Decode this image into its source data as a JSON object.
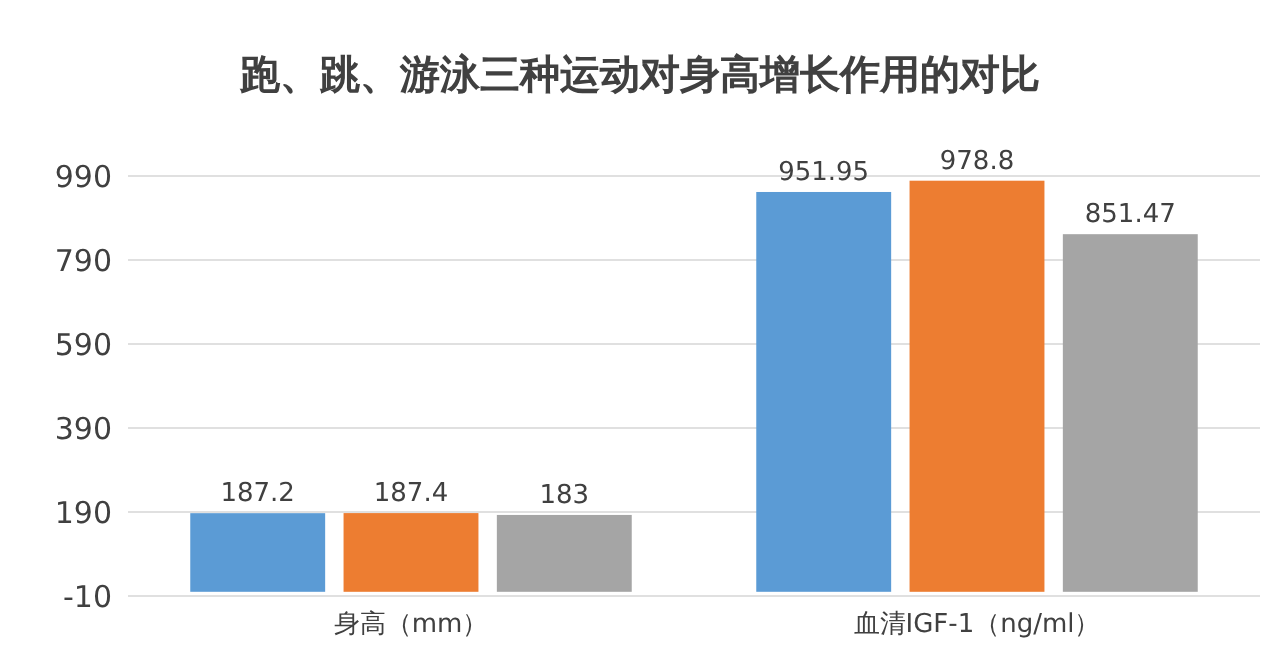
{
  "chart_data": {
    "type": "bar",
    "title": "跑、跳、游泳三种运动对身高增长作用的对比",
    "categories": [
      "身高（mm）",
      "血清IGF-1（ng/ml）"
    ],
    "series": [
      {
        "color": "#5b9bd5",
        "values": [
          187.2,
          951.95
        ]
      },
      {
        "color": "#ed7d31",
        "values": [
          187.4,
          978.8
        ]
      },
      {
        "color": "#a5a5a5",
        "values": [
          183,
          851.47
        ]
      }
    ],
    "ylim": [
      -10,
      990
    ],
    "yticks": [
      -10,
      190,
      390,
      590,
      790,
      990
    ],
    "grid": "y",
    "data_labels": true
  }
}
